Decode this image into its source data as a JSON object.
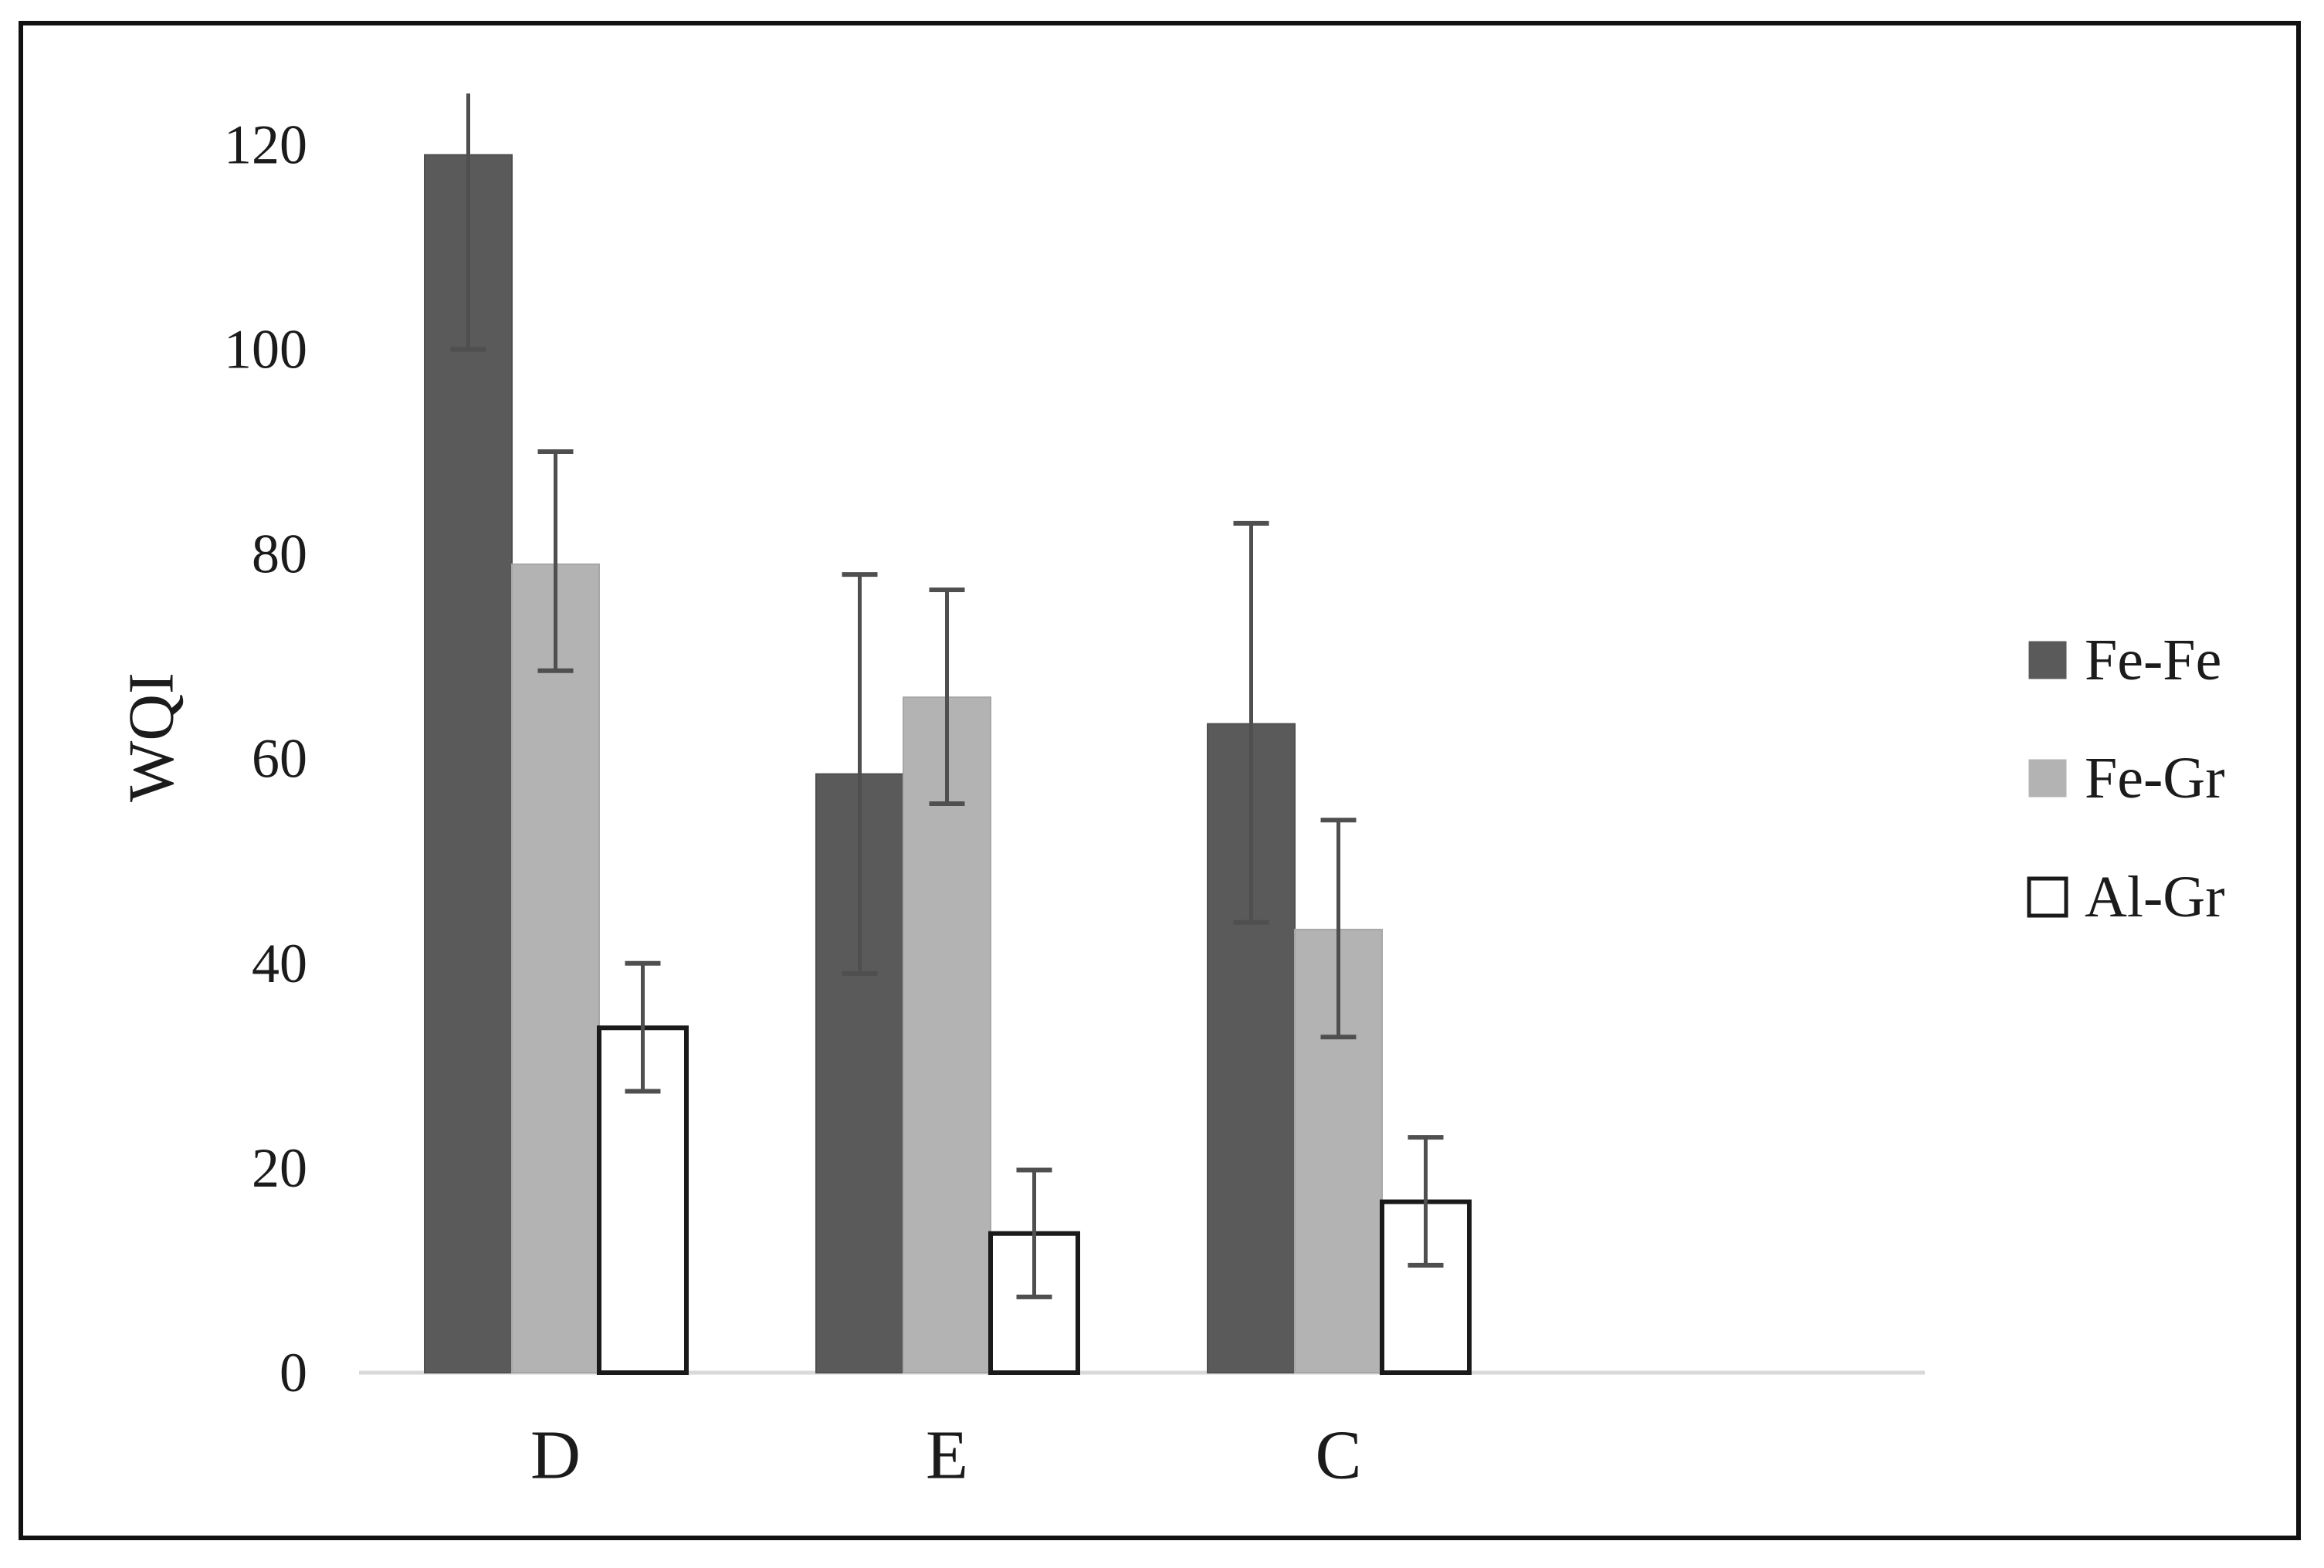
{
  "figure": {
    "background": "#ffffff",
    "border_color": "#111111",
    "border_width": 6
  },
  "chart_data": {
    "type": "bar",
    "title": "",
    "xlabel": "",
    "ylabel": "WQI",
    "categories": [
      "D",
      "E",
      "C"
    ],
    "series": [
      {
        "name": "Fe-Fe",
        "color": "#5a5a5a",
        "border": "#4f4f4f",
        "values": [
          119,
          58.5,
          63.4
        ],
        "error_low": [
          100,
          39,
          44
        ],
        "error_high": [
          125,
          78,
          83
        ],
        "cap_top": [
          false,
          true,
          true
        ],
        "cap_bottom": [
          true,
          true,
          true
        ]
      },
      {
        "name": "Fe-Gr",
        "color": "#b3b3b3",
        "border": "#a6a6a6",
        "values": [
          79,
          66,
          43.3
        ],
        "error_low": [
          68.6,
          55.6,
          32.8
        ],
        "error_high": [
          90,
          76.5,
          54
        ],
        "cap_top": [
          true,
          true,
          true
        ],
        "cap_bottom": [
          true,
          true,
          true
        ]
      },
      {
        "name": "Al-Gr",
        "color": "#ffffff",
        "border": "#1a1a1a",
        "values": [
          33.7,
          13.6,
          16.7
        ],
        "error_low": [
          27.5,
          7.4,
          10.5
        ],
        "error_high": [
          40,
          19.8,
          23
        ],
        "cap_top": [
          true,
          true,
          true
        ],
        "cap_bottom": [
          true,
          true,
          true
        ]
      }
    ],
    "axis": {
      "ymin": 0,
      "ymax": 120,
      "ystep": 20,
      "tick_labels": [
        "0",
        "20",
        "40",
        "60",
        "80",
        "100",
        "120"
      ],
      "tick_values": [
        0,
        20,
        40,
        60,
        80,
        100,
        120
      ],
      "axis_line_color": "#d9d9d9",
      "grid": false
    },
    "error_bar_color": "#4f4f4f",
    "legend_position": "right",
    "text_color": "#1b1b1b"
  }
}
